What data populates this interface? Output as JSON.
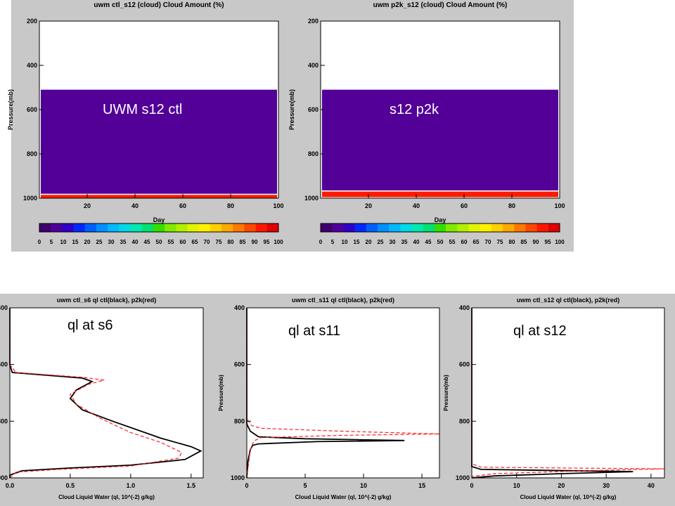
{
  "overlay_labels": {
    "top_left": "UWM s12 ctl",
    "top_right": "s12 p2k",
    "bottom_1": "ql at s6",
    "bottom_2": "ql at s11",
    "bottom_3": "ql at s12"
  },
  "colors": {
    "panel_bg": "#c8c8c8",
    "purple_fill": "#520098",
    "red_band": "#ff1a00",
    "ctl_line": "#000000",
    "p2k_line": "#ff2020"
  },
  "chart_data": [
    {
      "type": "heatmap",
      "title": "uwm ctl_s12  (cloud)  Cloud Amount (%)",
      "xlabel": "Day",
      "ylabel": "Pressure(mb)",
      "xlim": [
        0,
        100
      ],
      "ylim": [
        1000,
        200
      ],
      "x_ticks": [
        "20",
        "40",
        "60",
        "80",
        "100"
      ],
      "y_ticks": [
        "200",
        "400",
        "600",
        "800",
        "1000"
      ],
      "bands": [
        {
          "p_top": 510,
          "p_bottom": 980,
          "value": 0
        },
        {
          "p_top": 985,
          "p_bottom": 1000,
          "value": 100
        }
      ],
      "colorbar_ticks": [
        "0",
        "5",
        "10",
        "15",
        "20",
        "25",
        "30",
        "35",
        "40",
        "45",
        "50",
        "55",
        "60",
        "65",
        "70",
        "75",
        "80",
        "85",
        "90",
        "95",
        "100"
      ]
    },
    {
      "type": "heatmap",
      "title": "uwm p2k_s12  (cloud)  Cloud Amount (%)",
      "xlabel": "Day",
      "ylabel": "Pressure(mb)",
      "xlim": [
        0,
        100
      ],
      "ylim": [
        1000,
        200
      ],
      "x_ticks": [
        "20",
        "40",
        "60",
        "80",
        "100"
      ],
      "y_ticks": [
        "200",
        "400",
        "600",
        "800",
        "1000"
      ],
      "bands": [
        {
          "p_top": 510,
          "p_bottom": 965,
          "value": 0
        },
        {
          "p_top": 970,
          "p_bottom": 995,
          "value": 100
        }
      ],
      "colorbar_ticks": [
        "0",
        "5",
        "10",
        "15",
        "20",
        "25",
        "30",
        "35",
        "40",
        "45",
        "50",
        "55",
        "60",
        "65",
        "70",
        "75",
        "80",
        "85",
        "90",
        "95",
        "100"
      ]
    },
    {
      "type": "line",
      "title": "uwm ctl_s6 ql ctl(black), p2k(red)",
      "xlabel": "Cloud Liquid Water (ql, 10^(-2) g/kg)",
      "ylabel": "Pressure(mb)",
      "xlim": [
        0,
        1.6
      ],
      "ylim": [
        1000,
        400
      ],
      "x_ticks": [
        "0.0",
        "0.5",
        "1.0",
        "1.5"
      ],
      "x_tick_values": [
        0,
        0.5,
        1.0,
        1.5
      ],
      "y_ticks": [
        "400",
        "600",
        "800",
        "1000"
      ],
      "y_tick_values": [
        400,
        600,
        800,
        1000
      ],
      "series": [
        {
          "name": "ctl",
          "color": "#000000",
          "dash": false,
          "points": [
            [
              0,
              400
            ],
            [
              0,
              600
            ],
            [
              0.02,
              628
            ],
            [
              0.6,
              648
            ],
            [
              0.68,
              660
            ],
            [
              0.55,
              690
            ],
            [
              0.5,
              720
            ],
            [
              0.6,
              760
            ],
            [
              0.85,
              800
            ],
            [
              1.25,
              860
            ],
            [
              1.5,
              890
            ],
            [
              1.58,
              905
            ],
            [
              1.45,
              935
            ],
            [
              1.0,
              955
            ],
            [
              0.5,
              965
            ],
            [
              0.1,
              975
            ],
            [
              0,
              990
            ],
            [
              0,
              1000
            ]
          ]
        },
        {
          "name": "p2k",
          "color": "#ff2020",
          "dash": true,
          "points": [
            [
              0,
              400
            ],
            [
              0,
              600
            ],
            [
              0.05,
              628
            ],
            [
              0.6,
              645
            ],
            [
              0.78,
              655
            ],
            [
              0.65,
              670
            ],
            [
              0.5,
              705
            ],
            [
              0.55,
              740
            ],
            [
              0.75,
              790
            ],
            [
              1.0,
              840
            ],
            [
              1.25,
              875
            ],
            [
              1.42,
              910
            ],
            [
              1.4,
              930
            ],
            [
              1.0,
              958
            ],
            [
              0.4,
              970
            ],
            [
              0.05,
              980
            ],
            [
              0,
              1000
            ]
          ]
        }
      ]
    },
    {
      "type": "line",
      "title": "uwm ctl_s11 ql ctl(black), p2k(red)",
      "xlabel": "Cloud Liquid Water (ql, 10^(-2) g/kg)",
      "ylabel": "Pressure(mb)",
      "xlim": [
        0,
        16.5
      ],
      "ylim": [
        1000,
        400
      ],
      "x_ticks": [
        "0",
        "5",
        "10",
        "15"
      ],
      "x_tick_values": [
        0,
        5,
        10,
        15
      ],
      "y_ticks": [
        "400",
        "600",
        "800",
        "1000"
      ],
      "y_tick_values": [
        400,
        600,
        800,
        1000
      ],
      "series": [
        {
          "name": "ctl",
          "color": "#000000",
          "dash": false,
          "points": [
            [
              0,
              400
            ],
            [
              0,
              810
            ],
            [
              0.3,
              835
            ],
            [
              1.0,
              855
            ],
            [
              5,
              862
            ],
            [
              13.5,
              868
            ],
            [
              6,
              872
            ],
            [
              1.0,
              880
            ],
            [
              0.5,
              885
            ],
            [
              0.3,
              900
            ],
            [
              0.1,
              940
            ],
            [
              0,
              1000
            ]
          ]
        },
        {
          "name": "p2k",
          "color": "#ff2020",
          "dash": true,
          "points": [
            [
              0,
              400
            ],
            [
              0,
              790
            ],
            [
              0.4,
              815
            ],
            [
              1.2,
              825
            ],
            [
              8,
              835
            ],
            [
              16.5,
              845
            ],
            [
              8,
              850
            ],
            [
              1.2,
              858
            ],
            [
              0.6,
              870
            ],
            [
              0.3,
              900
            ],
            [
              0,
              1000
            ]
          ]
        }
      ]
    },
    {
      "type": "line",
      "title": "uwm ctl_s12 ql ctl(black), p2k(red)",
      "xlabel": "Cloud Liquid Water (ql, 10^(-2) g/kg)",
      "ylabel": "Pressure(mb)",
      "xlim": [
        0,
        43
      ],
      "ylim": [
        1000,
        400
      ],
      "x_ticks": [
        "0",
        "10",
        "20",
        "30",
        "40"
      ],
      "x_tick_values": [
        0,
        10,
        20,
        30,
        40
      ],
      "y_ticks": [
        "400",
        "600",
        "800",
        "1000"
      ],
      "y_tick_values": [
        400,
        600,
        800,
        1000
      ],
      "series": [
        {
          "name": "ctl",
          "color": "#000000",
          "dash": false,
          "points": [
            [
              0,
              400
            ],
            [
              0,
              960
            ],
            [
              2,
              970
            ],
            [
              36,
              978
            ],
            [
              20,
              985
            ],
            [
              5,
              993
            ],
            [
              0,
              1000
            ]
          ]
        },
        {
          "name": "p2k",
          "color": "#ff2020",
          "dash": true,
          "points": [
            [
              0,
              400
            ],
            [
              0,
              950
            ],
            [
              2,
              962
            ],
            [
              20,
              965
            ],
            [
              43,
              968
            ],
            [
              25,
              975
            ],
            [
              5,
              985
            ],
            [
              0,
              995
            ]
          ]
        }
      ]
    }
  ]
}
